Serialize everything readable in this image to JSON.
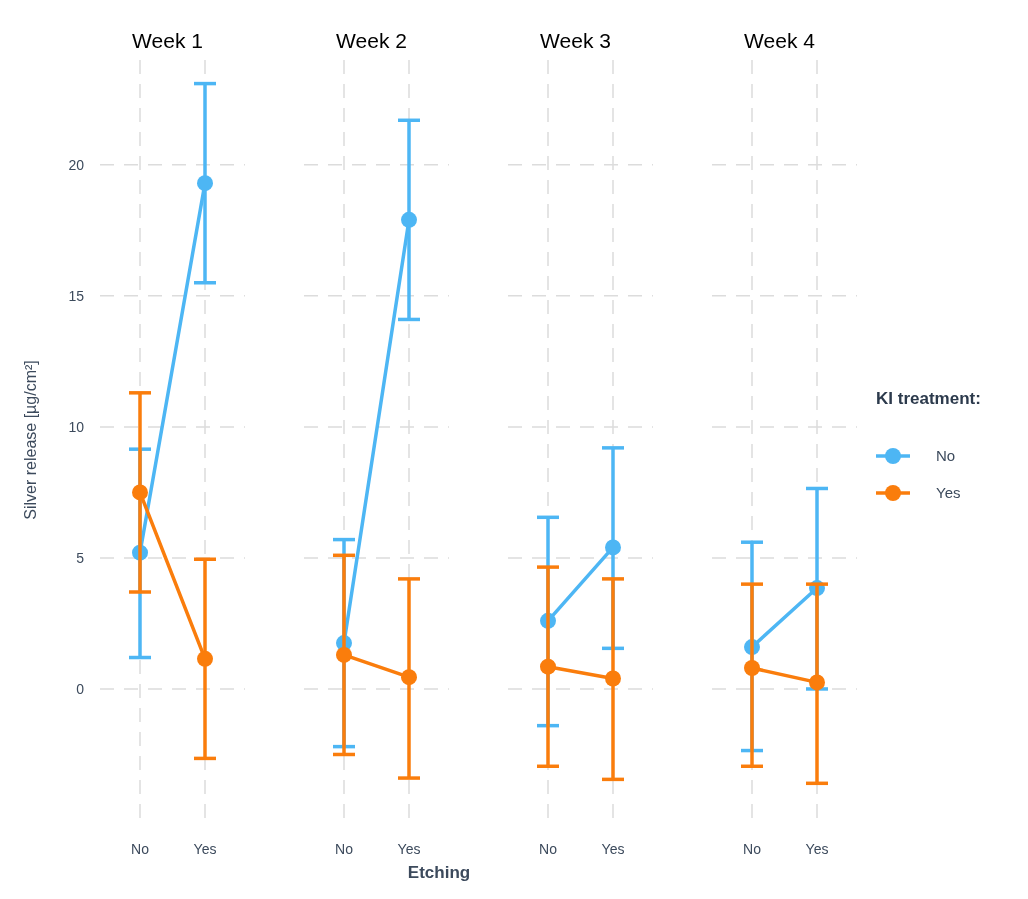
{
  "chart_data": [
    {
      "type": "line",
      "title": "Week 1",
      "ylabel": "Silver release [µg/cm²]",
      "categories": [
        "No",
        "Yes"
      ],
      "ylim": [
        -5,
        24
      ],
      "yticks": [
        0,
        5,
        10,
        15,
        20
      ],
      "grid": true,
      "marker": "circle",
      "line_style": "solid",
      "series": [
        {
          "color": "#4db6f4",
          "values": [
            5.2,
            19.3
          ],
          "errors": [
            [
              1.2,
              9.15
            ],
            [
              15.5,
              23.1
            ]
          ]
        },
        {
          "color": "#fa7d0c",
          "values": [
            7.5,
            1.15
          ],
          "errors": [
            [
              3.7,
              11.3
            ],
            [
              -2.65,
              4.95
            ]
          ]
        }
      ]
    },
    {
      "type": "line",
      "title": "Week 2",
      "xlabel": "Etching",
      "categories": [
        "No",
        "Yes"
      ],
      "ylim": [
        -5,
        24
      ],
      "yticks": [
        0,
        5,
        10,
        15,
        20
      ],
      "tick_labels": "x",
      "grid": true,
      "marker": "circle",
      "line_style": "solid",
      "series": [
        {
          "color": "#4db6f4",
          "values": [
            1.75,
            17.9
          ],
          "errors": [
            [
              -2.2,
              5.7
            ],
            [
              14.1,
              21.7
            ]
          ]
        },
        {
          "color": "#fa7d0c",
          "values": [
            1.3,
            0.45
          ],
          "errors": [
            [
              -2.5,
              5.1
            ],
            [
              -3.4,
              4.2
            ]
          ]
        }
      ]
    },
    {
      "type": "line",
      "title": "Week 3",
      "categories": [
        "No",
        "Yes"
      ],
      "ylim": [
        -5,
        24
      ],
      "yticks": [
        0,
        5,
        10,
        15,
        20
      ],
      "tick_labels": "x",
      "grid": true,
      "marker": "circle",
      "line_style": "solid",
      "series": [
        {
          "color": "#4db6f4",
          "values": [
            2.6,
            5.4
          ],
          "errors": [
            [
              -1.4,
              6.55
            ],
            [
              1.55,
              9.2
            ]
          ]
        },
        {
          "color": "#fa7d0c",
          "values": [
            0.85,
            0.4
          ],
          "errors": [
            [
              -2.95,
              4.65
            ],
            [
              -3.45,
              4.2
            ]
          ]
        }
      ]
    },
    {
      "type": "line",
      "title": "Week 4",
      "categories": [
        "No",
        "Yes"
      ],
      "ylim": [
        -5,
        24
      ],
      "yticks": [
        0,
        5,
        10,
        15,
        20
      ],
      "tick_labels": "x",
      "grid": true,
      "marker": "circle",
      "line_style": "solid",
      "legend": "right",
      "legend_title": "KI treatment:",
      "series": [
        {
          "name": "No",
          "color": "#4db6f4",
          "values": [
            1.6,
            3.85
          ],
          "errors": [
            [
              -2.35,
              5.6
            ],
            [
              0,
              7.65
            ]
          ]
        },
        {
          "name": "Yes",
          "color": "#fa7d0c",
          "values": [
            0.8,
            0.25
          ],
          "errors": [
            [
              -2.95,
              4.0
            ],
            [
              -3.6,
              4.0
            ]
          ]
        }
      ]
    }
  ]
}
